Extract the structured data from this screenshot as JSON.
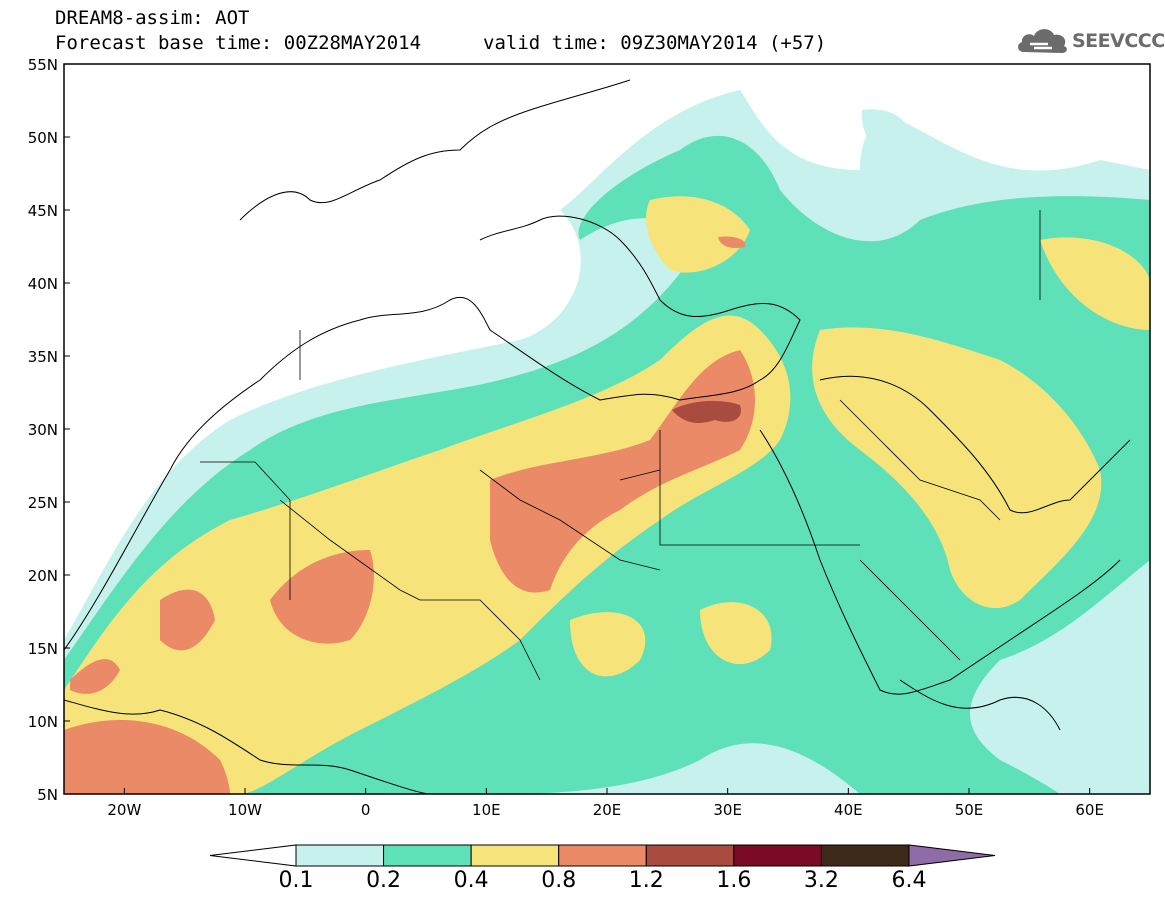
{
  "header": {
    "title_line1": "DREAM8-assim: AOT",
    "title_line2": "Forecast base time: 00Z28MAY2014",
    "valid_time": "valid time: 09Z30MAY2014 (+57)"
  },
  "logo": {
    "text": "SEEVCCC",
    "icon": "cloud-icon"
  },
  "map": {
    "lon_labels": [
      "20W",
      "10W",
      "0",
      "10E",
      "20E",
      "30E",
      "40E",
      "50E",
      "60E"
    ],
    "lat_labels": [
      "55N",
      "50N",
      "45N",
      "40N",
      "35N",
      "30N",
      "25N",
      "20N",
      "15N",
      "10N",
      "5N"
    ],
    "lon_range": [
      -25,
      65
    ],
    "lat_range": [
      5,
      55
    ]
  },
  "colorbar": {
    "labels": [
      "0.1",
      "0.2",
      "0.4",
      "0.8",
      "1.2",
      "1.6",
      "3.2",
      "6.4"
    ],
    "colors": [
      "#ffffff",
      "#c6f1ec",
      "#5ee0b8",
      "#f6e47a",
      "#ea8a67",
      "#a94c3f",
      "#7a0a26",
      "#3e2a1b",
      "#8f6ca8"
    ]
  }
}
